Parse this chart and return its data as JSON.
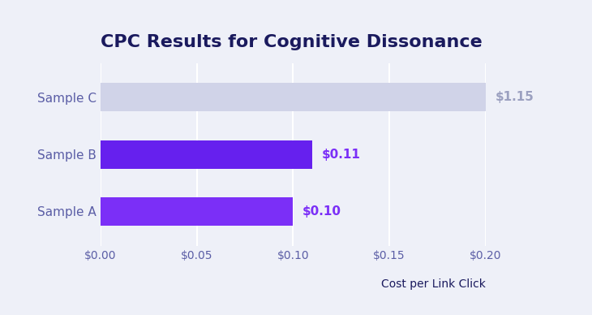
{
  "title": "CPC Results for Cognitive Dissonance",
  "categories": [
    "Sample A",
    "Sample B",
    "Sample C"
  ],
  "values": [
    0.1,
    0.11,
    1.15
  ],
  "bar_colors": [
    "#7B2FF7",
    "#6620EE",
    "#D0D3E8"
  ],
  "label_colors": [
    "#7B2FF7",
    "#7B2FF7",
    "#9BA0C0"
  ],
  "labels": [
    "$0.10",
    "$0.11",
    "$1.15"
  ],
  "xlabel": "Cost per Link Click",
  "xlim": [
    0,
    0.2
  ],
  "xticks": [
    0.0,
    0.05,
    0.1,
    0.15,
    0.2
  ],
  "xtick_labels": [
    "$0.00",
    "$0.05",
    "$0.10",
    "$0.15",
    "$0.20"
  ],
  "background_color": "#EEF0F8",
  "title_color": "#1A1A5E",
  "tick_color": "#5B5EA6",
  "xlabel_color": "#1A1A5E",
  "grid_color": "#FFFFFF",
  "title_fontsize": 16,
  "label_fontsize": 11,
  "tick_fontsize": 10,
  "xlabel_fontsize": 10,
  "bar_height": 0.5,
  "ytick_fontsize": 11
}
